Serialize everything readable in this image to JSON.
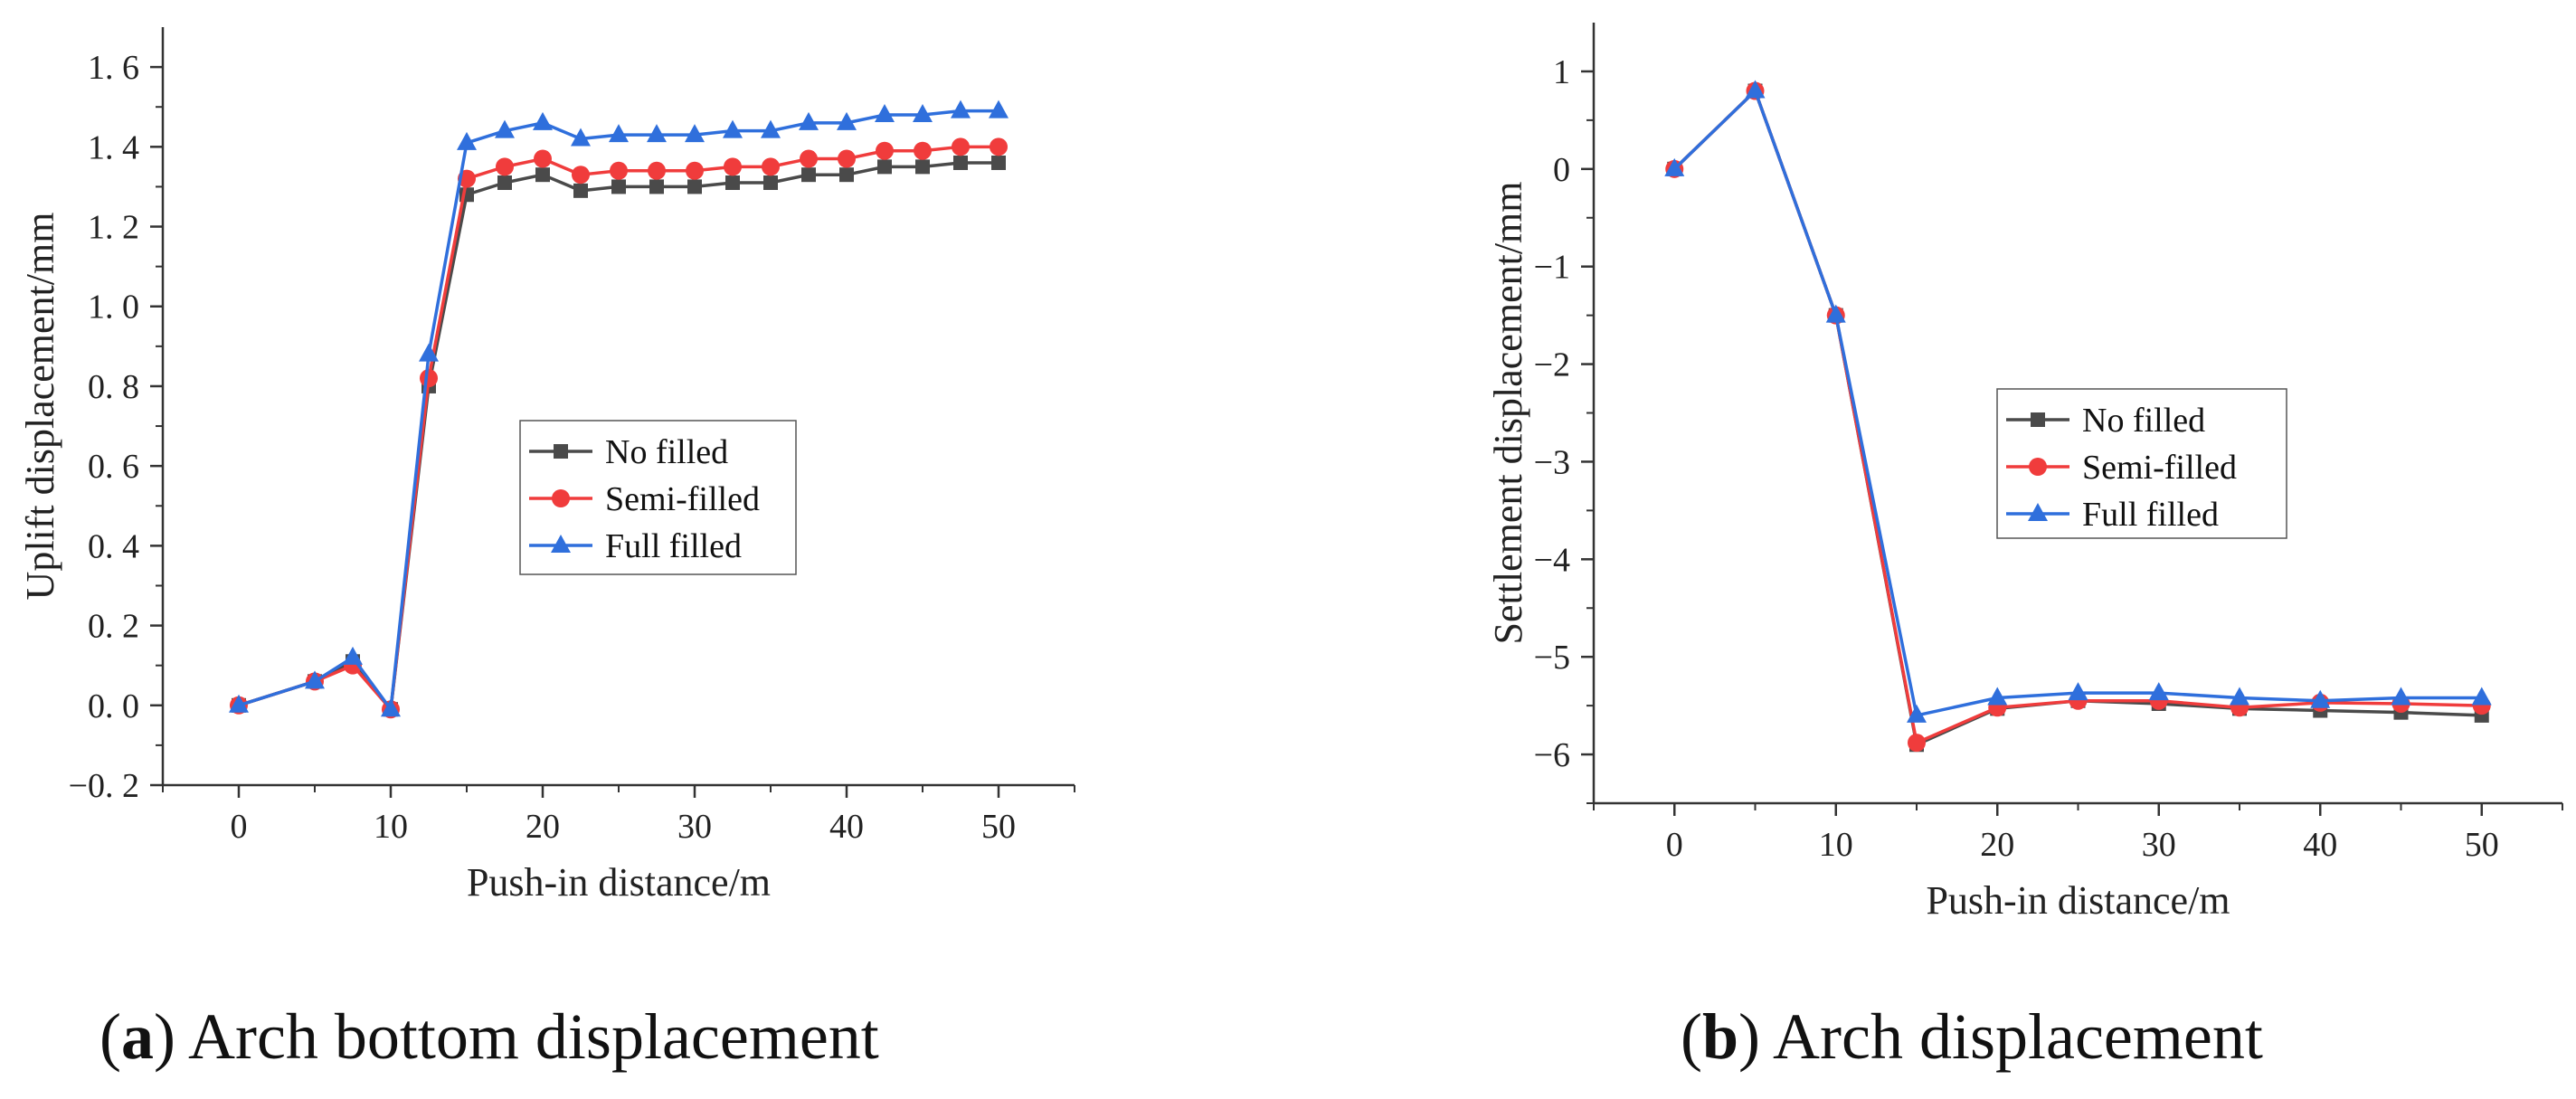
{
  "colors": {
    "no_filled": "#4a4a4a",
    "semi_filled": "#f03c3c",
    "full_filled": "#2f6fdc"
  },
  "captions": {
    "a": {
      "open": "(",
      "letter": "a",
      "rest": ") Arch bottom displacement"
    },
    "b": {
      "open": "(",
      "letter": "b",
      "rest": ") Arch displacement"
    }
  },
  "chart_data": [
    {
      "type": "line",
      "title": "",
      "xlabel": "Push-in distance/m",
      "ylabel": "Uplift displacement/mm",
      "xlim": [
        -5,
        55
      ],
      "ylim": [
        -0.2,
        1.7
      ],
      "xticks": [
        0,
        10,
        20,
        30,
        40,
        50
      ],
      "xtick_labels": [
        "0",
        "10",
        "20",
        "30",
        "40",
        "50"
      ],
      "yticks": [
        -0.2,
        0.0,
        0.2,
        0.4,
        0.6,
        0.8,
        1.0,
        1.2,
        1.4,
        1.6
      ],
      "ytick_labels": [
        "−0. 2",
        "0. 0",
        "0. 2",
        "0. 4",
        "0. 6",
        "0. 8",
        "1. 0",
        "1. 2",
        "1. 4",
        "1. 6"
      ],
      "legend_position": "center",
      "x": [
        0,
        5,
        7.5,
        10,
        12.5,
        15,
        17.5,
        20,
        22.5,
        25,
        27.5,
        30,
        32.5,
        35,
        37.5,
        40,
        42.5,
        45,
        47.5,
        50
      ],
      "series": [
        {
          "name": "No filled",
          "marker": "square",
          "color_key": "no_filled",
          "values": [
            0.0,
            0.06,
            0.11,
            -0.01,
            0.8,
            1.28,
            1.31,
            1.33,
            1.29,
            1.3,
            1.3,
            1.3,
            1.31,
            1.31,
            1.33,
            1.33,
            1.35,
            1.35,
            1.36,
            1.36
          ]
        },
        {
          "name": "Semi-filled",
          "marker": "circle",
          "color_key": "semi_filled",
          "values": [
            0.0,
            0.06,
            0.1,
            -0.01,
            0.82,
            1.32,
            1.35,
            1.37,
            1.33,
            1.34,
            1.34,
            1.34,
            1.35,
            1.35,
            1.37,
            1.37,
            1.39,
            1.39,
            1.4,
            1.4
          ]
        },
        {
          "name": "Full filled",
          "marker": "triangle",
          "color_key": "full_filled",
          "values": [
            0.0,
            0.06,
            0.12,
            -0.01,
            0.88,
            1.41,
            1.44,
            1.46,
            1.42,
            1.43,
            1.43,
            1.43,
            1.44,
            1.44,
            1.46,
            1.46,
            1.48,
            1.48,
            1.49,
            1.49
          ]
        }
      ]
    },
    {
      "type": "line",
      "title": "",
      "xlabel": "Push-in distance/m",
      "ylabel": "Settlement displacement/mm",
      "xlim": [
        -5,
        55
      ],
      "ylim": [
        -6.5,
        1.5
      ],
      "xticks": [
        0,
        10,
        20,
        30,
        40,
        50
      ],
      "xtick_labels": [
        "0",
        "10",
        "20",
        "30",
        "40",
        "50"
      ],
      "yticks": [
        -6,
        -5,
        -4,
        -3,
        -2,
        -1,
        0,
        1
      ],
      "ytick_labels": [
        "−6",
        "−5",
        "−4",
        "−3",
        "−2",
        "−1",
        "0",
        "1"
      ],
      "legend_position": "center",
      "x": [
        0,
        5,
        10,
        15,
        20,
        25,
        30,
        35,
        40,
        45,
        50
      ],
      "series": [
        {
          "name": "No filled",
          "marker": "square",
          "color_key": "no_filled",
          "values": [
            0.0,
            0.8,
            -1.5,
            -5.9,
            -5.53,
            -5.45,
            -5.48,
            -5.53,
            -5.55,
            -5.57,
            -5.6
          ]
        },
        {
          "name": "Semi-filled",
          "marker": "circle",
          "color_key": "semi_filled",
          "values": [
            0.0,
            0.8,
            -1.5,
            -5.88,
            -5.52,
            -5.45,
            -5.45,
            -5.52,
            -5.47,
            -5.48,
            -5.5
          ]
        },
        {
          "name": "Full filled",
          "marker": "triangle",
          "color_key": "full_filled",
          "values": [
            0.0,
            0.8,
            -1.5,
            -5.6,
            -5.42,
            -5.37,
            -5.37,
            -5.42,
            -5.45,
            -5.42,
            -5.42
          ]
        }
      ]
    }
  ]
}
